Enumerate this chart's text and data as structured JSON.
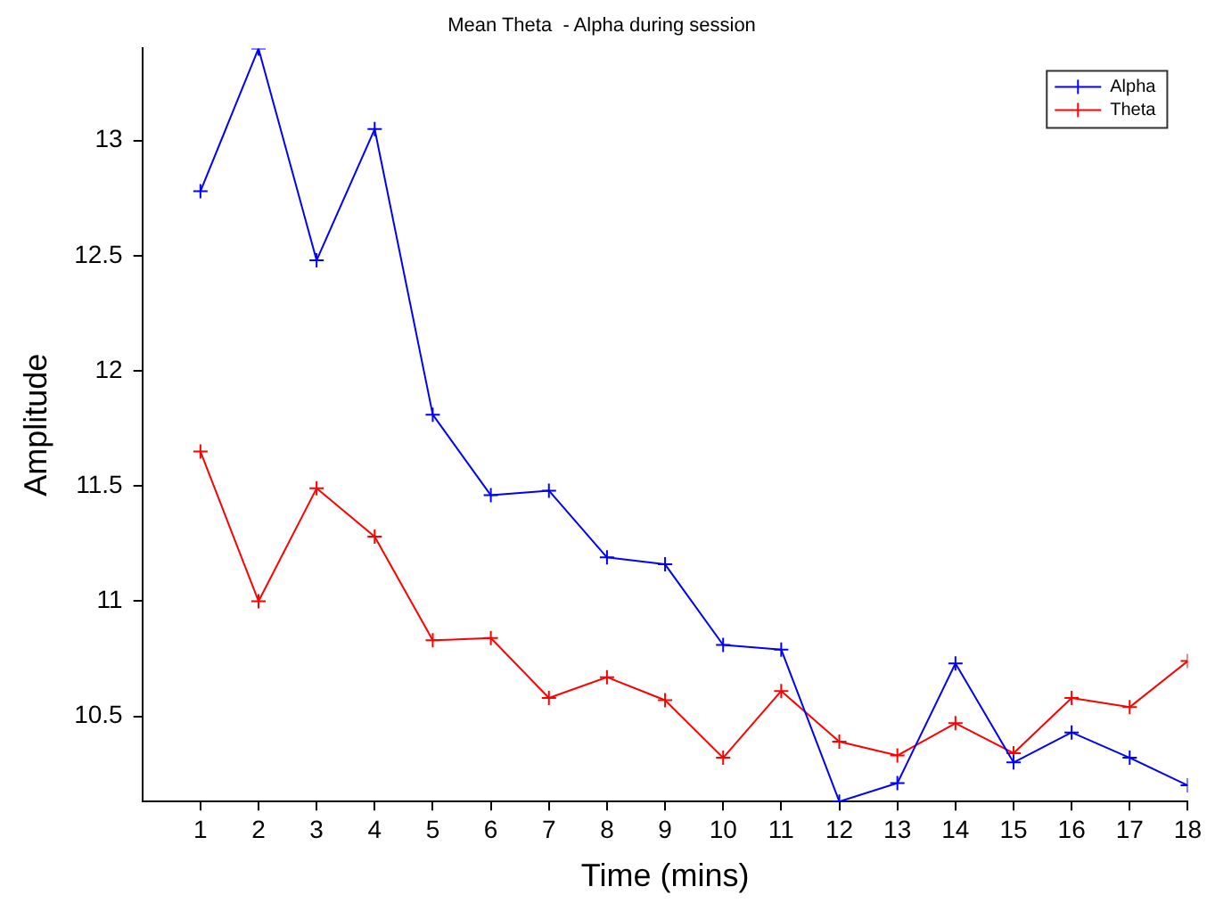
{
  "chart_data": {
    "type": "line",
    "title": "Mean Theta  - Alpha during session",
    "xlabel": "Time (mins)",
    "ylabel": "Amplitude",
    "x": [
      1,
      2,
      3,
      4,
      5,
      6,
      7,
      8,
      9,
      10,
      11,
      12,
      13,
      14,
      15,
      16,
      17,
      18
    ],
    "series": [
      {
        "name": "Alpha",
        "color": "#0000ff",
        "values": [
          12.78,
          13.4,
          12.48,
          13.05,
          11.81,
          11.46,
          11.48,
          11.19,
          11.16,
          10.81,
          10.79,
          10.13,
          10.21,
          10.73,
          10.3,
          10.43,
          10.32,
          10.2
        ]
      },
      {
        "name": "Theta",
        "color": "#ff0000",
        "values": [
          11.65,
          11.0,
          11.49,
          11.28,
          10.83,
          10.84,
          10.58,
          10.67,
          10.57,
          10.32,
          10.61,
          10.39,
          10.33,
          10.47,
          10.34,
          10.58,
          10.54,
          10.74
        ]
      }
    ],
    "xlim": [
      0,
      18
    ],
    "xticks": [
      1,
      2,
      3,
      4,
      5,
      6,
      7,
      8,
      9,
      10,
      11,
      12,
      13,
      14,
      15,
      16,
      17,
      18
    ],
    "ylim": [
      10.13,
      13.4
    ],
    "yticks": [
      10.5,
      11,
      11.5,
      12,
      12.5,
      13
    ],
    "grid": false,
    "legend": "top right",
    "marker": "cross",
    "line_style": "solid"
  }
}
